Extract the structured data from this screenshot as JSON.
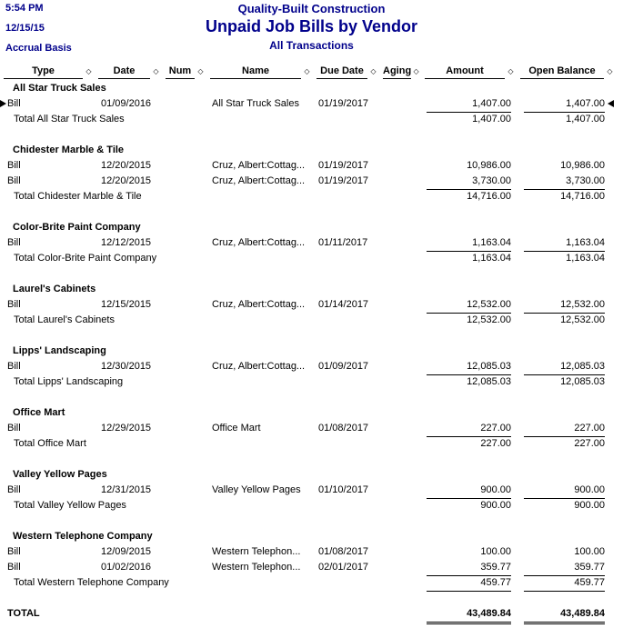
{
  "colors": {
    "navy": "#00008B",
    "text": "#000000",
    "background": "#FFFFFF"
  },
  "icons": {
    "column_separator": "◇",
    "row_marker_left": "right-pointing-triangle",
    "row_marker_right": "left-pointing-triangle"
  },
  "report": {
    "time": "5:54 PM",
    "date": "12/15/15",
    "basis": "Accrual Basis",
    "company": "Quality-Built Construction",
    "title": "Unpaid Job Bills by Vendor",
    "subtitle": "All Transactions",
    "columns": [
      "Type",
      "Date",
      "Num",
      "Name",
      "Due Date",
      "Aging",
      "Amount",
      "Open Balance"
    ],
    "sections": [
      {
        "vendor": "All Star Truck Sales",
        "rows": [
          {
            "type": "Bill",
            "date": "01/09/2016",
            "num": "",
            "name": "All Star Truck Sales",
            "due": "01/19/2017",
            "aging": "",
            "amount": "1,407.00",
            "open": "1,407.00"
          }
        ],
        "total_label": "Total All Star Truck Sales",
        "total_amount": "1,407.00",
        "total_open": "1,407.00"
      },
      {
        "vendor": "Chidester Marble & Tile",
        "rows": [
          {
            "type": "Bill",
            "date": "12/20/2015",
            "num": "",
            "name": "Cruz, Albert:Cottag...",
            "due": "01/19/2017",
            "aging": "",
            "amount": "10,986.00",
            "open": "10,986.00"
          },
          {
            "type": "Bill",
            "date": "12/20/2015",
            "num": "",
            "name": "Cruz, Albert:Cottag...",
            "due": "01/19/2017",
            "aging": "",
            "amount": "3,730.00",
            "open": "3,730.00"
          }
        ],
        "total_label": "Total Chidester Marble & Tile",
        "total_amount": "14,716.00",
        "total_open": "14,716.00"
      },
      {
        "vendor": "Color-Brite Paint Company",
        "rows": [
          {
            "type": "Bill",
            "date": "12/12/2015",
            "num": "",
            "name": "Cruz, Albert:Cottag...",
            "due": "01/11/2017",
            "aging": "",
            "amount": "1,163.04",
            "open": "1,163.04"
          }
        ],
        "total_label": "Total Color-Brite Paint Company",
        "total_amount": "1,163.04",
        "total_open": "1,163.04"
      },
      {
        "vendor": "Laurel's Cabinets",
        "rows": [
          {
            "type": "Bill",
            "date": "12/15/2015",
            "num": "",
            "name": "Cruz, Albert:Cottag...",
            "due": "01/14/2017",
            "aging": "",
            "amount": "12,532.00",
            "open": "12,532.00"
          }
        ],
        "total_label": "Total Laurel's Cabinets",
        "total_amount": "12,532.00",
        "total_open": "12,532.00"
      },
      {
        "vendor": "Lipps' Landscaping",
        "rows": [
          {
            "type": "Bill",
            "date": "12/30/2015",
            "num": "",
            "name": "Cruz, Albert:Cottag...",
            "due": "01/09/2017",
            "aging": "",
            "amount": "12,085.03",
            "open": "12,085.03"
          }
        ],
        "total_label": "Total Lipps' Landscaping",
        "total_amount": "12,085.03",
        "total_open": "12,085.03"
      },
      {
        "vendor": "Office Mart",
        "rows": [
          {
            "type": "Bill",
            "date": "12/29/2015",
            "num": "",
            "name": "Office Mart",
            "due": "01/08/2017",
            "aging": "",
            "amount": "227.00",
            "open": "227.00"
          }
        ],
        "total_label": "Total Office Mart",
        "total_amount": "227.00",
        "total_open": "227.00"
      },
      {
        "vendor": "Valley Yellow Pages",
        "rows": [
          {
            "type": "Bill",
            "date": "12/31/2015",
            "num": "",
            "name": "Valley Yellow Pages",
            "due": "01/10/2017",
            "aging": "",
            "amount": "900.00",
            "open": "900.00"
          }
        ],
        "total_label": "Total Valley Yellow Pages",
        "total_amount": "900.00",
        "total_open": "900.00"
      },
      {
        "vendor": "Western Telephone Company",
        "rows": [
          {
            "type": "Bill",
            "date": "12/09/2015",
            "num": "",
            "name": "Western Telephon...",
            "due": "01/08/2017",
            "aging": "",
            "amount": "100.00",
            "open": "100.00"
          },
          {
            "type": "Bill",
            "date": "01/02/2016",
            "num": "",
            "name": "Western Telephon...",
            "due": "02/01/2017",
            "aging": "",
            "amount": "359.77",
            "open": "359.77"
          }
        ],
        "total_label": "Total Western Telephone Company",
        "total_amount": "459.77",
        "total_open": "459.77"
      }
    ],
    "grand_total": {
      "label": "TOTAL",
      "amount": "43,489.84",
      "open": "43,489.84"
    }
  }
}
